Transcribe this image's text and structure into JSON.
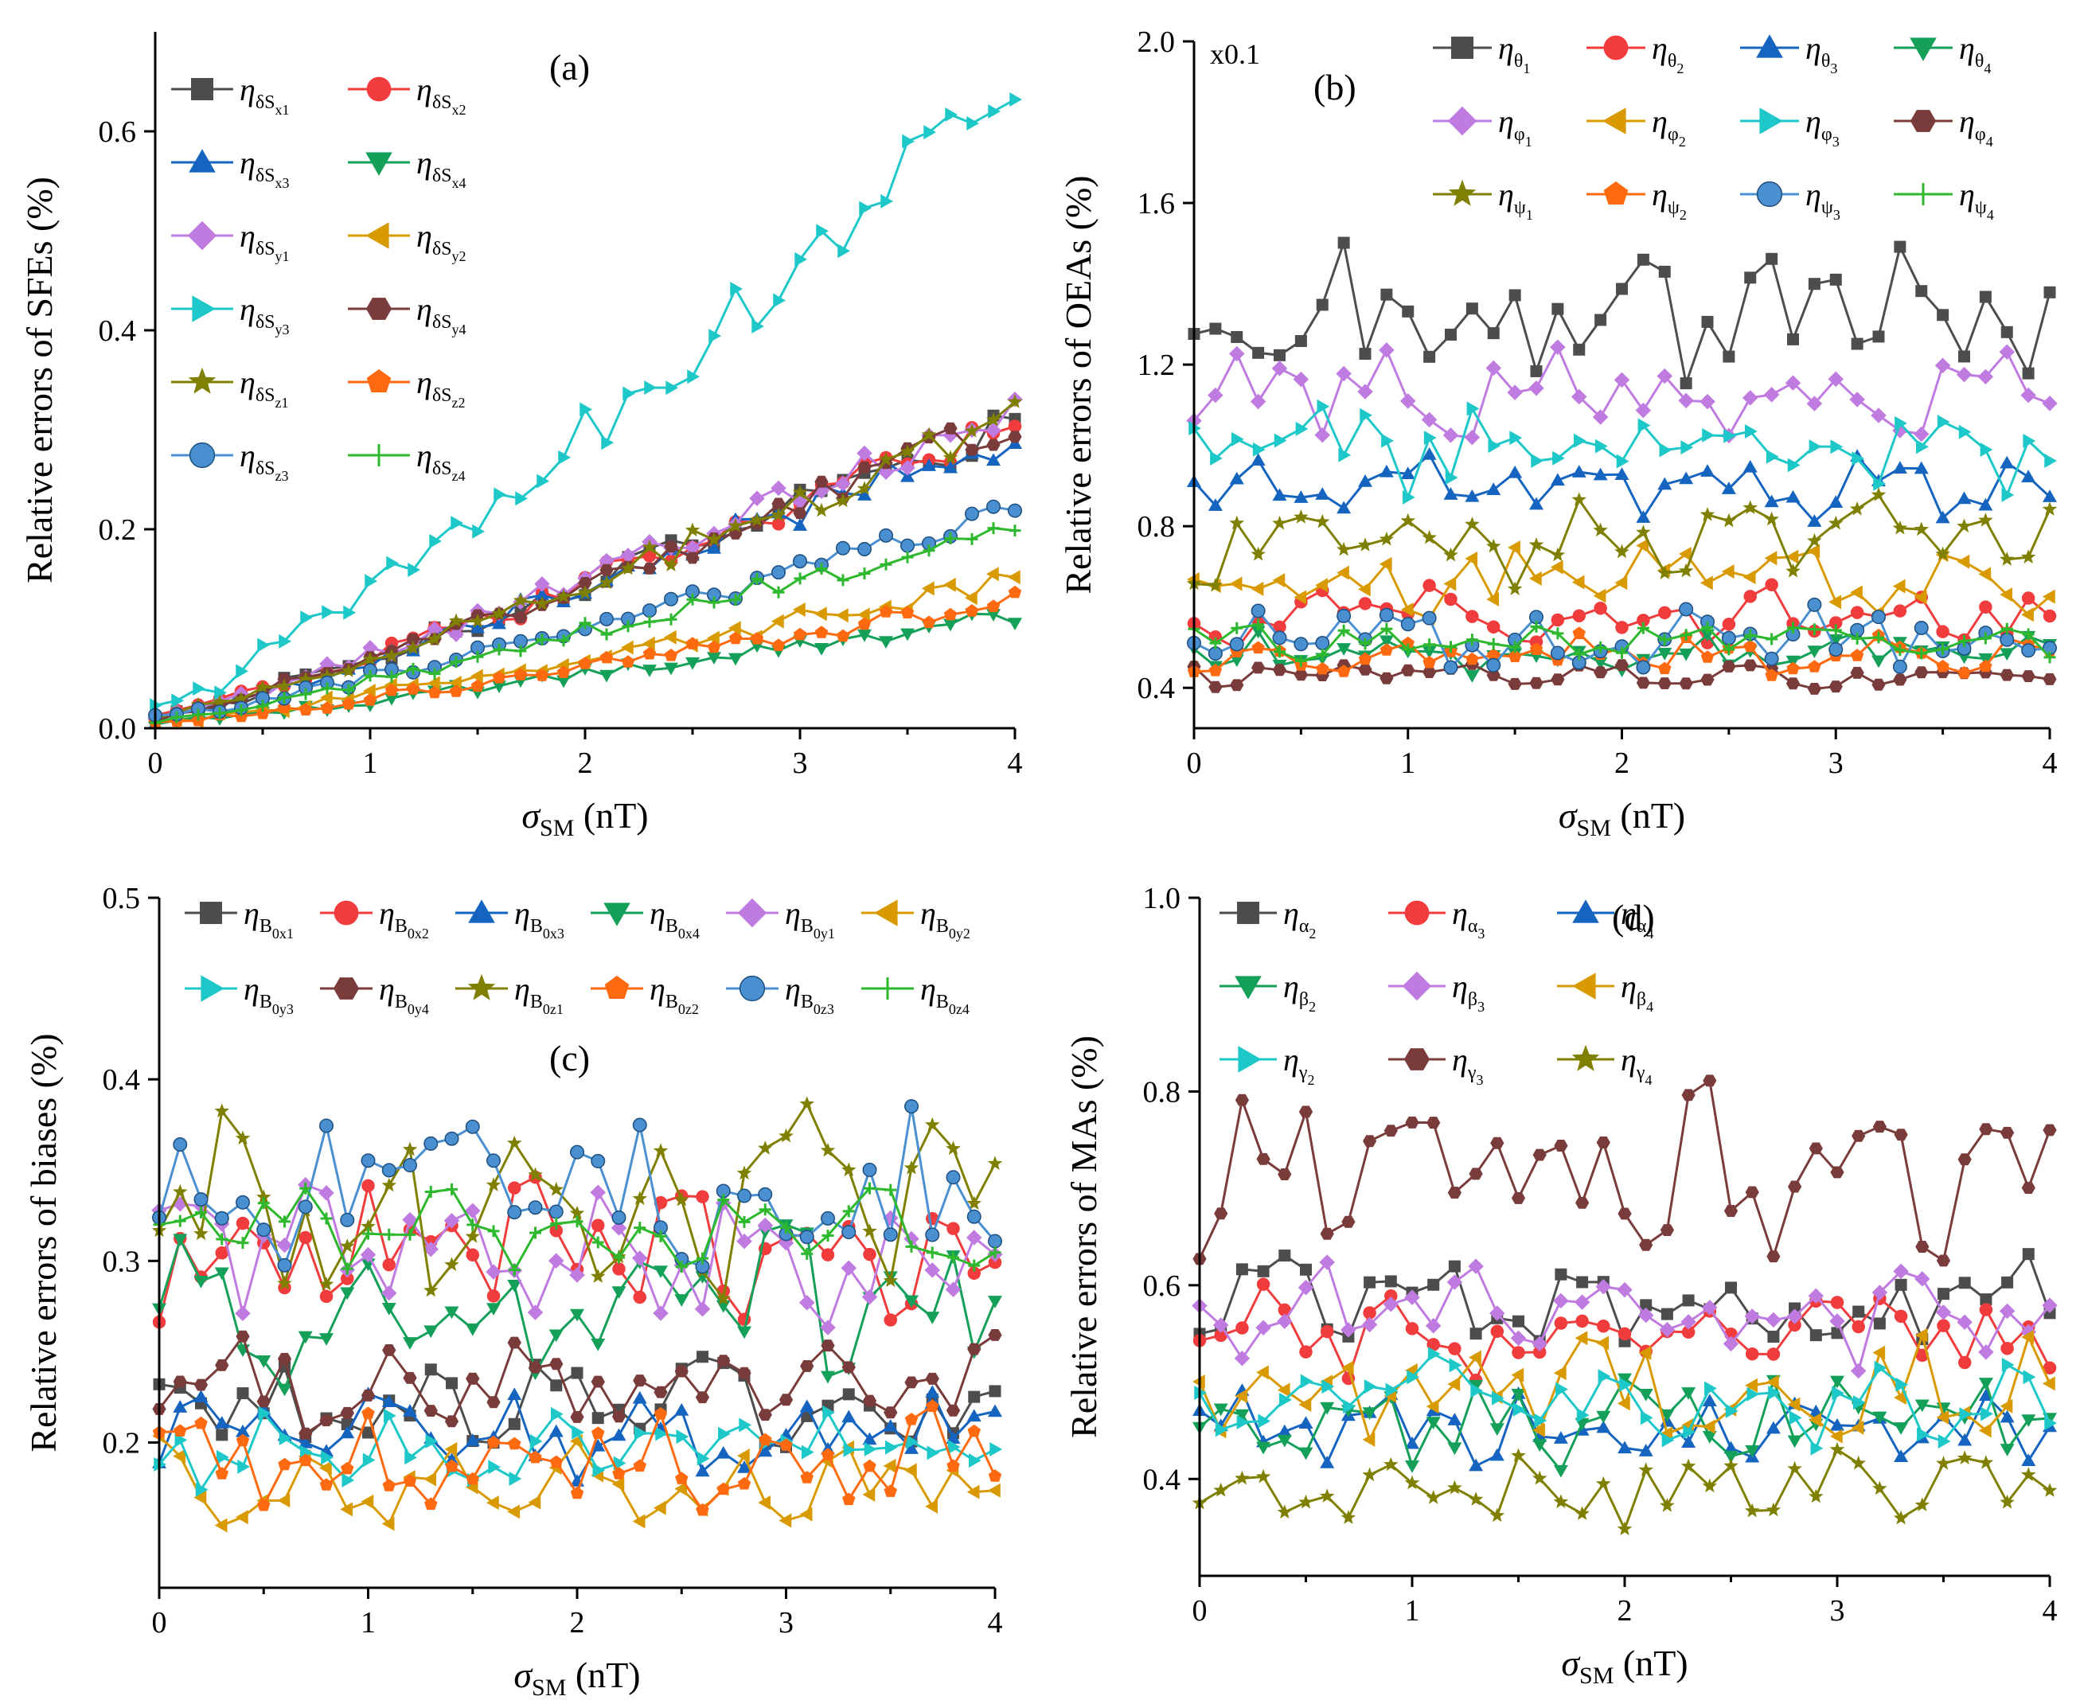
{
  "figure": {
    "caption_panels": [
      "(a)",
      "(b)",
      "(c)",
      "(d)"
    ]
  },
  "chart_data": [
    {
      "id": "a",
      "type": "line",
      "panel_label": "(a)",
      "xlabel": "σSM (nT)",
      "xlabel_main": "σ",
      "xlabel_sub": "SM",
      "xlabel_unit": " (nT)",
      "ylabel": "Relative errors of SFEs (%)",
      "xlim": [
        0,
        4
      ],
      "ylim": [
        0,
        0.7
      ],
      "xticks": [
        0,
        1,
        2,
        3,
        4
      ],
      "xtick_labels": [
        "0",
        "1",
        "2",
        "3",
        "4"
      ],
      "yticks": [
        0.0,
        0.2,
        0.4,
        0.6
      ],
      "ytick_labels": [
        "0.0",
        "0.2",
        "0.4",
        "0.6"
      ],
      "scale_note": "",
      "legend_cols": 2,
      "series": [
        {
          "name": "ηδSx1",
          "sym": "η",
          "sub": "δS",
          "subsub": "x1",
          "color": "#4d4d4d",
          "marker": "square",
          "seed": 1,
          "start": 0.01,
          "end": 0.31,
          "noise": 0.018
        },
        {
          "name": "ηδSx2",
          "sym": "η",
          "sub": "δS",
          "subsub": "x2",
          "color": "#f03c3c",
          "marker": "circle",
          "seed": 2,
          "start": 0.01,
          "end": 0.31,
          "noise": 0.018
        },
        {
          "name": "ηδSx3",
          "sym": "η",
          "sub": "δS",
          "subsub": "x3",
          "color": "#1565c0",
          "marker": "triangle-up",
          "seed": 3,
          "start": 0.01,
          "end": 0.3,
          "noise": 0.018
        },
        {
          "name": "ηδSx4",
          "sym": "η",
          "sub": "δS",
          "subsub": "x4",
          "color": "#15a05a",
          "marker": "triangle-down",
          "seed": 4,
          "start": 0.005,
          "end": 0.115,
          "noise": 0.008
        },
        {
          "name": "ηδSy1",
          "sym": "η",
          "sub": "δS",
          "subsub": "y1",
          "color": "#c07be0",
          "marker": "diamond",
          "seed": 5,
          "start": 0.01,
          "end": 0.32,
          "noise": 0.018
        },
        {
          "name": "ηδSy2",
          "sym": "η",
          "sub": "δS",
          "subsub": "y2",
          "color": "#d99a00",
          "marker": "triangle-left",
          "seed": 6,
          "start": 0.005,
          "end": 0.15,
          "noise": 0.01
        },
        {
          "name": "ηδSy3",
          "sym": "η",
          "sub": "δS",
          "subsub": "y3",
          "color": "#1ec8c8",
          "marker": "triangle-right",
          "seed": 7,
          "start": 0.015,
          "end": 0.64,
          "noise": 0.035
        },
        {
          "name": "ηδSy4",
          "sym": "η",
          "sub": "δS",
          "subsub": "y4",
          "color": "#7a3b3b",
          "marker": "hexagon",
          "seed": 8,
          "start": 0.01,
          "end": 0.31,
          "noise": 0.016
        },
        {
          "name": "ηδSz1",
          "sym": "η",
          "sub": "δS",
          "subsub": "z1",
          "color": "#808000",
          "marker": "star",
          "seed": 9,
          "start": 0.01,
          "end": 0.31,
          "noise": 0.016
        },
        {
          "name": "ηδSz2",
          "sym": "η",
          "sub": "δS",
          "subsub": "z2",
          "color": "#ff6a10",
          "marker": "pentagon",
          "seed": 10,
          "start": 0.005,
          "end": 0.13,
          "noise": 0.009
        },
        {
          "name": "ηδSz3",
          "sym": "η",
          "sub": "δS",
          "subsub": "z3",
          "color": "#4a90d0",
          "marker": "sphere",
          "seed": 11,
          "start": 0.01,
          "end": 0.215,
          "noise": 0.012
        },
        {
          "name": "ηδSz4",
          "sym": "η",
          "sub": "δS",
          "subsub": "z4",
          "color": "#2eb82e",
          "marker": "plus",
          "seed": 12,
          "start": 0.008,
          "end": 0.205,
          "noise": 0.012
        }
      ]
    },
    {
      "id": "b",
      "type": "line",
      "panel_label": "(b)",
      "xlabel": "σSM (nT)",
      "xlabel_main": "σ",
      "xlabel_sub": "SM",
      "xlabel_unit": " (nT)",
      "ylabel": "Relative errors of OEAs (%)",
      "xlim": [
        0,
        4
      ],
      "ylim": [
        0.3,
        2.0
      ],
      "xticks": [
        0,
        1,
        2,
        3,
        4
      ],
      "xtick_labels": [
        "0",
        "1",
        "2",
        "3",
        "4"
      ],
      "yticks": [
        0.4,
        0.8,
        1.2,
        1.6,
        2.0
      ],
      "ytick_labels": [
        "0.4",
        "0.8",
        "1.2",
        "1.6",
        "2.0"
      ],
      "scale_note": "x0.1",
      "legend_cols": 4,
      "series": [
        {
          "name": "ηθ1",
          "sym": "η",
          "sub": "θ",
          "subsub": "1",
          "color": "#4d4d4d",
          "marker": "square",
          "seed": 21,
          "base": 1.33,
          "noise": 0.15
        },
        {
          "name": "ηθ2",
          "sym": "η",
          "sub": "θ",
          "subsub": "2",
          "color": "#f03c3c",
          "marker": "circle",
          "seed": 22,
          "base": 0.58,
          "noise": 0.06
        },
        {
          "name": "ηθ3",
          "sym": "η",
          "sub": "θ",
          "subsub": "3",
          "color": "#1565c0",
          "marker": "triangle-up",
          "seed": 23,
          "base": 0.91,
          "noise": 0.07
        },
        {
          "name": "ηθ4",
          "sym": "η",
          "sub": "θ",
          "subsub": "4",
          "color": "#15a05a",
          "marker": "triangle-down",
          "seed": 24,
          "base": 0.48,
          "noise": 0.04
        },
        {
          "name": "ηφ1",
          "sym": "η",
          "sub": "φ",
          "subsub": "1",
          "color": "#c07be0",
          "marker": "diamond",
          "seed": 25,
          "base": 1.13,
          "noise": 0.09
        },
        {
          "name": "ηφ2",
          "sym": "η",
          "sub": "φ",
          "subsub": "2",
          "color": "#d99a00",
          "marker": "triangle-left",
          "seed": 26,
          "base": 0.66,
          "noise": 0.07
        },
        {
          "name": "ηφ3",
          "sym": "η",
          "sub": "φ",
          "subsub": "3",
          "color": "#1ec8c8",
          "marker": "triangle-right",
          "seed": 27,
          "base": 0.99,
          "noise": 0.08
        },
        {
          "name": "ηφ4",
          "sym": "η",
          "sub": "φ",
          "subsub": "4",
          "color": "#7a3b3b",
          "marker": "hexagon",
          "seed": 28,
          "base": 0.43,
          "noise": 0.03
        },
        {
          "name": "ηψ1",
          "sym": "η",
          "sub": "ψ",
          "subsub": "1",
          "color": "#808000",
          "marker": "star",
          "seed": 29,
          "base": 0.76,
          "noise": 0.08
        },
        {
          "name": "ηψ2",
          "sym": "η",
          "sub": "ψ",
          "subsub": "2",
          "color": "#ff6a10",
          "marker": "pentagon",
          "seed": 30,
          "base": 0.48,
          "noise": 0.04
        },
        {
          "name": "ηψ3",
          "sym": "η",
          "sub": "ψ",
          "subsub": "3",
          "color": "#4a90d0",
          "marker": "sphere",
          "seed": 31,
          "base": 0.53,
          "noise": 0.07
        },
        {
          "name": "ηψ4",
          "sym": "η",
          "sub": "ψ",
          "subsub": "4",
          "color": "#2eb82e",
          "marker": "plus",
          "seed": 32,
          "base": 0.52,
          "noise": 0.04
        }
      ]
    },
    {
      "id": "c",
      "type": "line",
      "panel_label": "(c)",
      "xlabel": "σSM (nT)",
      "xlabel_main": "σ",
      "xlabel_sub": "SM",
      "xlabel_unit": " (nT)",
      "ylabel": "Relative errors of biases (%)",
      "xlim": [
        0,
        4
      ],
      "ylim": [
        0.12,
        0.5
      ],
      "xticks": [
        0,
        1,
        2,
        3,
        4
      ],
      "xtick_labels": [
        "0",
        "1",
        "2",
        "3",
        "4"
      ],
      "yticks": [
        0.2,
        0.3,
        0.4,
        0.5
      ],
      "ytick_labels": [
        "0.2",
        "0.3",
        "0.4",
        "0.5"
      ],
      "scale_note": "",
      "legend_cols": 6,
      "series": [
        {
          "name": "ηB0x1",
          "sym": "η",
          "sub": "B",
          "subsub": "0x1",
          "color": "#4d4d4d",
          "marker": "square",
          "seed": 41,
          "base": 0.222,
          "noise": 0.018
        },
        {
          "name": "ηB0x2",
          "sym": "η",
          "sub": "B",
          "subsub": "0x2",
          "color": "#f03c3c",
          "marker": "circle",
          "seed": 42,
          "base": 0.305,
          "noise": 0.028
        },
        {
          "name": "ηB0x3",
          "sym": "η",
          "sub": "B",
          "subsub": "0x3",
          "color": "#1565c0",
          "marker": "triangle-up",
          "seed": 43,
          "base": 0.205,
          "noise": 0.018
        },
        {
          "name": "ηB0x4",
          "sym": "η",
          "sub": "B",
          "subsub": "0x4",
          "color": "#15a05a",
          "marker": "triangle-down",
          "seed": 44,
          "base": 0.275,
          "noise": 0.035
        },
        {
          "name": "ηB0y1",
          "sym": "η",
          "sub": "B",
          "subsub": "0y1",
          "color": "#c07be0",
          "marker": "diamond",
          "seed": 45,
          "base": 0.305,
          "noise": 0.028
        },
        {
          "name": "ηB0y2",
          "sym": "η",
          "sub": "B",
          "subsub": "0y2",
          "color": "#d99a00",
          "marker": "triangle-left",
          "seed": 46,
          "base": 0.178,
          "noise": 0.02
        },
        {
          "name": "ηB0y3",
          "sym": "η",
          "sub": "B",
          "subsub": "0y3",
          "color": "#1ec8c8",
          "marker": "triangle-right",
          "seed": 47,
          "base": 0.2,
          "noise": 0.018
        },
        {
          "name": "ηB0y4",
          "sym": "η",
          "sub": "B",
          "subsub": "0y4",
          "color": "#7a3b3b",
          "marker": "hexagon",
          "seed": 48,
          "base": 0.232,
          "noise": 0.02
        },
        {
          "name": "ηB0z1",
          "sym": "η",
          "sub": "B",
          "subsub": "0z1",
          "color": "#808000",
          "marker": "star",
          "seed": 49,
          "base": 0.33,
          "noise": 0.04
        },
        {
          "name": "ηB0z2",
          "sym": "η",
          "sub": "B",
          "subsub": "0z2",
          "color": "#ff6a10",
          "marker": "pentagon",
          "seed": 50,
          "base": 0.19,
          "noise": 0.02
        },
        {
          "name": "ηB0z3",
          "sym": "η",
          "sub": "B",
          "subsub": "0z3",
          "color": "#4a90d0",
          "marker": "sphere",
          "seed": 51,
          "base": 0.335,
          "noise": 0.035
        },
        {
          "name": "ηB0z4",
          "sym": "η",
          "sub": "B",
          "subsub": "0z4",
          "color": "#2eb82e",
          "marker": "plus",
          "seed": 52,
          "base": 0.315,
          "noise": 0.018
        }
      ]
    },
    {
      "id": "d",
      "type": "line",
      "panel_label": "(d)",
      "xlabel": "σSM (nT)",
      "xlabel_main": "σ",
      "xlabel_sub": "SM",
      "xlabel_unit": " (nT)",
      "ylabel": "Relative errors of MAs (%)",
      "xlim": [
        0,
        4
      ],
      "ylim": [
        0.3,
        1.0
      ],
      "xticks": [
        0,
        1,
        2,
        3,
        4
      ],
      "xtick_labels": [
        "0",
        "1",
        "2",
        "3",
        "4"
      ],
      "yticks": [
        0.4,
        0.6,
        0.8,
        1.0
      ],
      "ytick_labels": [
        "0.4",
        "0.6",
        "0.8",
        "1.0"
      ],
      "scale_note": "",
      "legend_cols": 3,
      "series": [
        {
          "name": "ηα2",
          "sym": "η",
          "sub": "α",
          "subsub": "2",
          "color": "#4d4d4d",
          "marker": "square",
          "seed": 61,
          "base": 0.58,
          "noise": 0.04
        },
        {
          "name": "ηα3",
          "sym": "η",
          "sub": "α",
          "subsub": "3",
          "color": "#f03c3c",
          "marker": "circle",
          "seed": 62,
          "base": 0.55,
          "noise": 0.035
        },
        {
          "name": "ηα4",
          "sym": "η",
          "sub": "α",
          "subsub": "4",
          "color": "#1565c0",
          "marker": "triangle-up",
          "seed": 63,
          "base": 0.45,
          "noise": 0.03
        },
        {
          "name": "ηβ2",
          "sym": "η",
          "sub": "β",
          "subsub": "2",
          "color": "#15a05a",
          "marker": "triangle-down",
          "seed": 64,
          "base": 0.46,
          "noise": 0.04
        },
        {
          "name": "ηβ3",
          "sym": "η",
          "sub": "β",
          "subsub": "3",
          "color": "#c07be0",
          "marker": "diamond",
          "seed": 65,
          "base": 0.57,
          "noise": 0.04
        },
        {
          "name": "ηβ4",
          "sym": "η",
          "sub": "β",
          "subsub": "4",
          "color": "#d99a00",
          "marker": "triangle-left",
          "seed": 66,
          "base": 0.49,
          "noise": 0.045
        },
        {
          "name": "ηγ2",
          "sym": "η",
          "sub": "γ",
          "subsub": "2",
          "color": "#1ec8c8",
          "marker": "triangle-right",
          "seed": 67,
          "base": 0.48,
          "noise": 0.035
        },
        {
          "name": "ηγ3",
          "sym": "η",
          "sub": "γ",
          "subsub": "3",
          "color": "#7a3b3b",
          "marker": "hexagon",
          "seed": 68,
          "base": 0.72,
          "noise": 0.07
        },
        {
          "name": "ηγ4",
          "sym": "η",
          "sub": "γ",
          "subsub": "4",
          "color": "#808000",
          "marker": "star",
          "seed": 69,
          "base": 0.39,
          "noise": 0.03
        }
      ]
    }
  ]
}
